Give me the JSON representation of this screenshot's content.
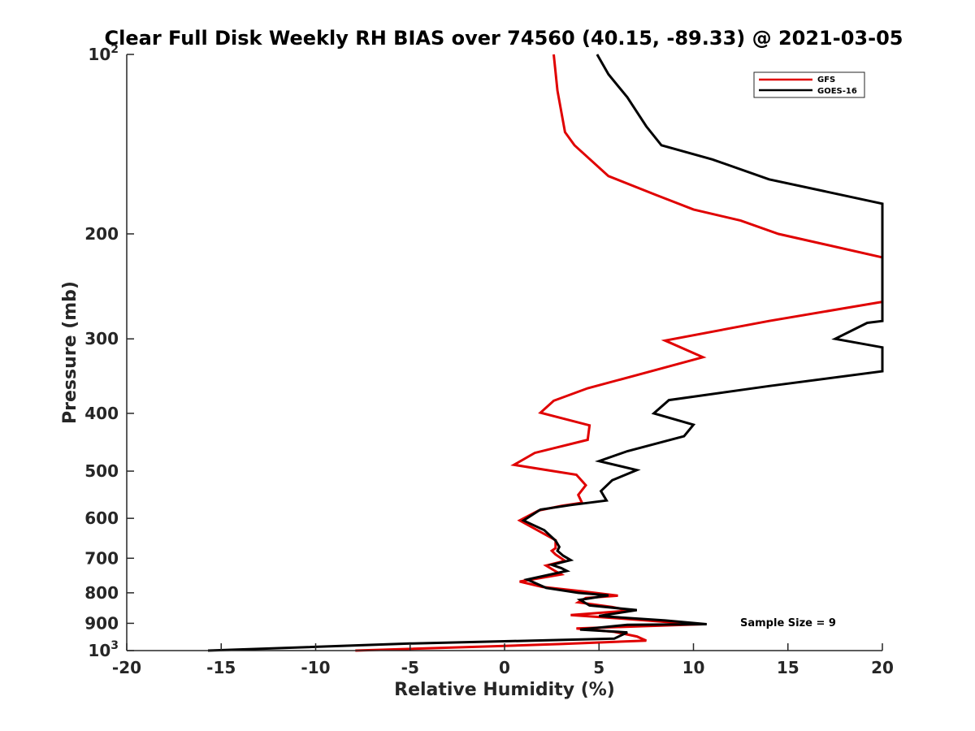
{
  "chart_data": {
    "type": "line",
    "title": "Clear Full Disk Weekly RH BIAS over 74560 (40.15, -89.33) @ 2021-03-05",
    "xlabel": "Relative Humidity (%)",
    "ylabel": "Pressure (mb)",
    "xlim": [
      -20,
      20
    ],
    "ylim": [
      100,
      1000
    ],
    "y_scale": "log",
    "y_reversed": true,
    "grid": false,
    "legend_position": "top-right",
    "x_ticks": [
      "-20",
      "-15",
      "-10",
      "-5",
      "0",
      "5",
      "10",
      "15",
      "20"
    ],
    "y_ticks": [
      {
        "base": "10",
        "exp": "2"
      },
      {
        "base": "200",
        "exp": ""
      },
      {
        "base": "300",
        "exp": ""
      },
      {
        "base": "400",
        "exp": ""
      },
      {
        "base": "500",
        "exp": ""
      },
      {
        "base": "600",
        "exp": ""
      },
      {
        "base": "700",
        "exp": ""
      },
      {
        "base": "800",
        "exp": ""
      },
      {
        "base": "900",
        "exp": ""
      },
      {
        "base": "10",
        "exp": "3"
      }
    ],
    "annotation": "Sample Size = 9",
    "series": [
      {
        "name": "GFS",
        "color": "#e00000",
        "points": [
          [
            2.6,
            100
          ],
          [
            2.8,
            115
          ],
          [
            3.2,
            135
          ],
          [
            3.7,
            142
          ],
          [
            5.5,
            160
          ],
          [
            8.0,
            172
          ],
          [
            10.0,
            182
          ],
          [
            12.5,
            190
          ],
          [
            14.5,
            200
          ],
          [
            20.0,
            219
          ],
          [
            20.0,
            260
          ],
          [
            14.0,
            280
          ],
          [
            8.5,
            302
          ],
          [
            10.5,
            322
          ],
          [
            7.0,
            345
          ],
          [
            4.4,
            363
          ],
          [
            2.6,
            381
          ],
          [
            1.9,
            399
          ],
          [
            4.5,
            419
          ],
          [
            4.4,
            443
          ],
          [
            1.6,
            466
          ],
          [
            0.5,
            488
          ],
          [
            3.8,
            507
          ],
          [
            4.3,
            528
          ],
          [
            3.9,
            548
          ],
          [
            4.1,
            565
          ],
          [
            3.0,
            572
          ],
          [
            1.8,
            582
          ],
          [
            0.8,
            605
          ],
          [
            2.7,
            653
          ],
          [
            2.7,
            673
          ],
          [
            2.5,
            680
          ],
          [
            2.7,
            690
          ],
          [
            3.2,
            707
          ],
          [
            2.2,
            720
          ],
          [
            2.6,
            733
          ],
          [
            3.0,
            745
          ],
          [
            0.8,
            766
          ],
          [
            2.0,
            782
          ],
          [
            4.2,
            796
          ],
          [
            6.0,
            809
          ],
          [
            4.3,
            816
          ],
          [
            3.9,
            830
          ],
          [
            5.7,
            845
          ],
          [
            6.6,
            857
          ],
          [
            3.5,
            872
          ],
          [
            6.0,
            883
          ],
          [
            8.5,
            895
          ],
          [
            10.5,
            903
          ],
          [
            3.8,
            918
          ],
          [
            5.8,
            930
          ],
          [
            7.0,
            947
          ],
          [
            7.5,
            962
          ],
          [
            3.0,
            975
          ],
          [
            0.0,
            982
          ],
          [
            -7.9,
            1000
          ]
        ]
      },
      {
        "name": "GOES-16",
        "color": "#000000",
        "points": [
          [
            4.9,
            100
          ],
          [
            5.5,
            108
          ],
          [
            6.5,
            118
          ],
          [
            7.5,
            132
          ],
          [
            8.3,
            142
          ],
          [
            11.0,
            150
          ],
          [
            14.0,
            162
          ],
          [
            20.0,
            178
          ],
          [
            20.0,
            280
          ],
          [
            19.2,
            282
          ],
          [
            17.5,
            300
          ],
          [
            20.0,
            310
          ],
          [
            20.0,
            340
          ],
          [
            14.0,
            360
          ],
          [
            8.7,
            380
          ],
          [
            7.9,
            400
          ],
          [
            10.0,
            418
          ],
          [
            9.5,
            437
          ],
          [
            6.5,
            463
          ],
          [
            5.0,
            481
          ],
          [
            7.0,
            498
          ],
          [
            5.7,
            518
          ],
          [
            5.1,
            540
          ],
          [
            5.4,
            560
          ],
          [
            3.5,
            570
          ],
          [
            1.9,
            580
          ],
          [
            1.0,
            605
          ],
          [
            2.1,
            628
          ],
          [
            2.7,
            654
          ],
          [
            2.9,
            670
          ],
          [
            2.8,
            680
          ],
          [
            3.1,
            693
          ],
          [
            3.5,
            705
          ],
          [
            2.5,
            718
          ],
          [
            3.0,
            727
          ],
          [
            3.3,
            735
          ],
          [
            1.2,
            760
          ],
          [
            2.2,
            785
          ],
          [
            3.9,
            800
          ],
          [
            5.5,
            808
          ],
          [
            4.0,
            822
          ],
          [
            4.5,
            840
          ],
          [
            7.0,
            855
          ],
          [
            5.0,
            875
          ],
          [
            8.5,
            890
          ],
          [
            10.7,
            903
          ],
          [
            6.5,
            905
          ],
          [
            4.0,
            922
          ],
          [
            6.5,
            932
          ],
          [
            5.8,
            955
          ],
          [
            -5.0,
            973
          ],
          [
            -15.7,
            1000
          ]
        ]
      }
    ]
  }
}
